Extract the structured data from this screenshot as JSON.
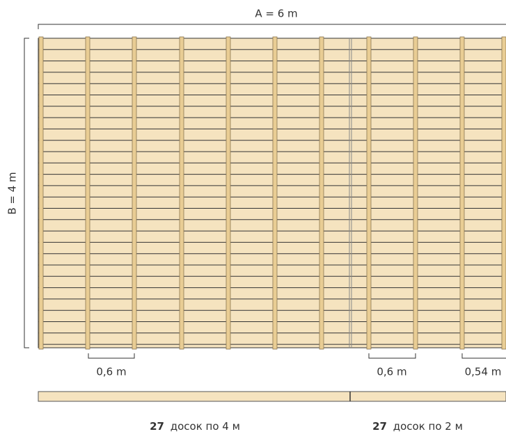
{
  "dimensions": {
    "width": "A = 6 m",
    "height": "B = 4 m"
  },
  "spacing_labels": [
    "0,6 m",
    "0,6 m",
    "0,54 m"
  ],
  "boards": [
    {
      "count": 27,
      "label": "досок по 4 м"
    },
    {
      "count": 27,
      "label": "досок по 2 м"
    }
  ]
}
